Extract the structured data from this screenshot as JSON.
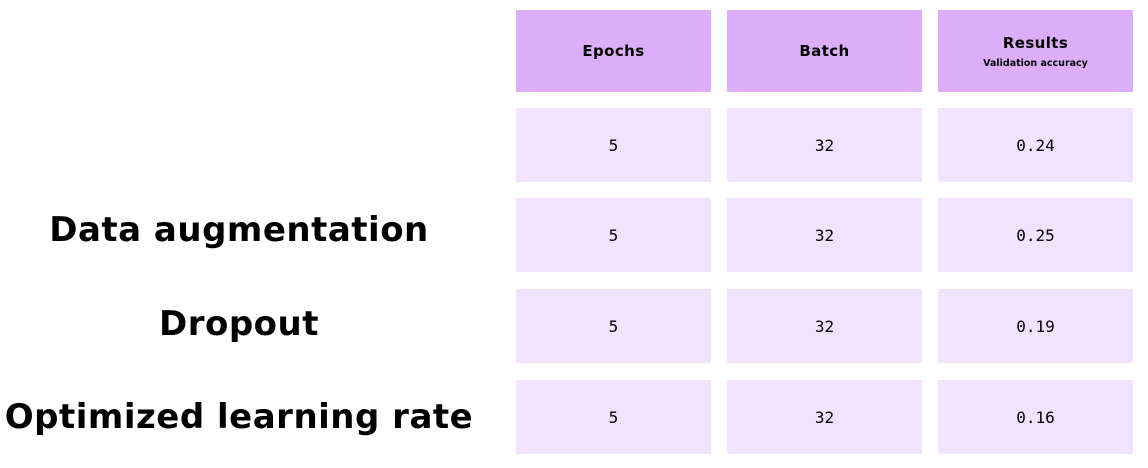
{
  "table": {
    "headers": [
      {
        "title": "Epochs",
        "subtitle": ""
      },
      {
        "title": "Batch",
        "subtitle": ""
      },
      {
        "title": "Results",
        "subtitle": "Validation accuracy"
      }
    ],
    "rows": [
      {
        "label": "",
        "epochs": "5",
        "batch": "32",
        "result": "0.24"
      },
      {
        "label": "Data augmentation",
        "epochs": "5",
        "batch": "32",
        "result": "0.25"
      },
      {
        "label": "Dropout",
        "epochs": "5",
        "batch": "32",
        "result": "0.19"
      },
      {
        "label": "Optimized learning rate",
        "epochs": "5",
        "batch": "32",
        "result": "0.16"
      }
    ]
  }
}
